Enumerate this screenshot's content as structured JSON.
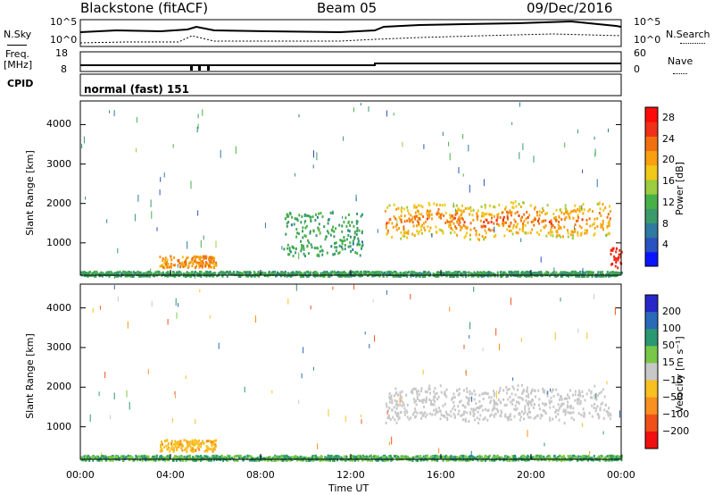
{
  "header": {
    "station": "Blackstone (fitACF)",
    "beam": "Beam 05",
    "date": "09/Dec/2016"
  },
  "top_panels": {
    "nsky_label": "N.Sky",
    "nsearch_label": "N.Search",
    "noise_ticks": [
      "10^5",
      "10^0"
    ],
    "freq_label": "Freq.",
    "freq_unit": "[MHz]",
    "freq_ticks": [
      "18",
      "8"
    ],
    "nave_label": "Nave",
    "nave_ticks": [
      "60",
      "0"
    ],
    "cpid_label": "CPID",
    "cpid_value": "normal (fast) 151"
  },
  "chart_data": [
    {
      "type": "heatmap",
      "panel": "power",
      "ylabel": "Slant Range [km]",
      "xlabel": "Time UT",
      "x_ticks": [
        "00:00",
        "04:00",
        "08:00",
        "12:00",
        "16:00",
        "20:00",
        "00:00"
      ],
      "xlim": [
        0,
        24
      ],
      "y_ticks": [
        1000,
        2000,
        3000,
        4000
      ],
      "ylim": [
        180,
        4600
      ],
      "colorbar": {
        "label": "Power [dB]",
        "ticks": [
          4,
          8,
          12,
          16,
          20,
          24,
          28
        ],
        "range": [
          0,
          30
        ],
        "colors": [
          "#0a14ff",
          "#2a52c0",
          "#2e7aa0",
          "#3a9a6a",
          "#48b048",
          "#9ccc40",
          "#f0c818",
          "#f8a010",
          "#f07010",
          "#f03018",
          "#ff0a0a"
        ]
      },
      "regions": [
        {
          "label": "ground scatter band",
          "t_start": 3.5,
          "t_end": 6.0,
          "range_km": [
            400,
            700
          ],
          "power_db": 22
        },
        {
          "label": "near-range scatter",
          "t_start": 0.0,
          "t_end": 24.0,
          "range_km": [
            180,
            300
          ],
          "power_db": 10
        },
        {
          "label": "daytime echoes",
          "t_start": 13.5,
          "t_end": 23.5,
          "range_km": [
            1200,
            2000
          ],
          "power_db": 24
        },
        {
          "label": "midday patches",
          "t_start": 9.0,
          "t_end": 12.5,
          "range_km": [
            700,
            1800
          ],
          "power_db": 10
        },
        {
          "label": "late strong echo",
          "t_start": 23.5,
          "t_end": 24.0,
          "range_km": [
            400,
            900
          ],
          "power_db": 28
        }
      ]
    },
    {
      "type": "heatmap",
      "panel": "velocity",
      "ylabel": "Slant Range [km]",
      "xlabel": "Time UT",
      "x_ticks": [
        "00:00",
        "04:00",
        "08:00",
        "12:00",
        "16:00",
        "20:00",
        "00:00"
      ],
      "xlim": [
        0,
        24
      ],
      "y_ticks": [
        1000,
        2000,
        3000,
        4000
      ],
      "ylim": [
        180,
        4600
      ],
      "colorbar": {
        "label": "Velocity [m s⁻¹]",
        "ticks": [
          200,
          100,
          50,
          15,
          -15,
          -50,
          -100,
          -200
        ],
        "colors": [
          "#2828c8",
          "#2a6ab8",
          "#2a9870",
          "#78c848",
          "#c8c8c8",
          "#f8c020",
          "#f89020",
          "#f05018",
          "#f01010"
        ]
      },
      "regions": [
        {
          "label": "ground scatter band",
          "t_start": 3.5,
          "t_end": 6.0,
          "range_km": [
            400,
            700
          ],
          "velocity_ms": -40
        },
        {
          "label": "daytime echoes",
          "t_start": 13.5,
          "t_end": 23.5,
          "range_km": [
            1200,
            2000
          ],
          "velocity_ms": 0
        },
        {
          "label": "near-range scatter",
          "t_start": 0.0,
          "t_end": 24.0,
          "range_km": [
            180,
            300
          ],
          "velocity_ms": 30
        }
      ]
    }
  ]
}
